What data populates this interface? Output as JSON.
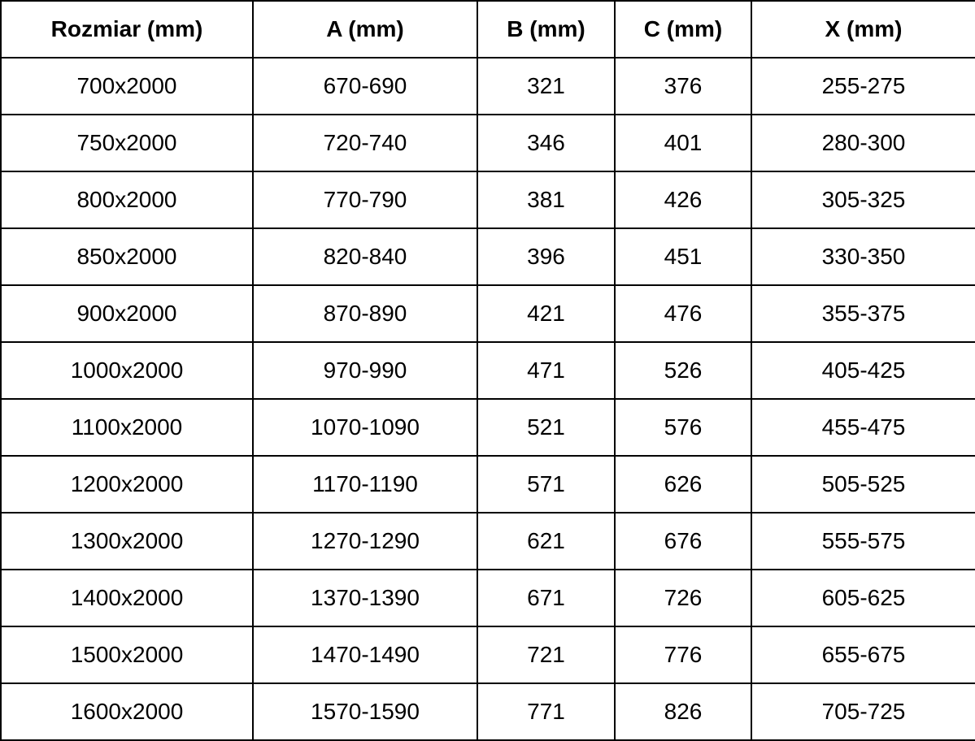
{
  "page": {
    "background_color": "#ffffff",
    "text_color": "#000000",
    "grid_color": "#000000"
  },
  "table": {
    "headers": [
      "Rozmiar (mm)",
      "A (mm)",
      "B (mm)",
      "C (mm)",
      "X (mm)"
    ],
    "rows": [
      [
        "700x2000",
        "670-690",
        "321",
        "376",
        "255-275"
      ],
      [
        "750x2000",
        "720-740",
        "346",
        "401",
        "280-300"
      ],
      [
        "800x2000",
        "770-790",
        "381",
        "426",
        "305-325"
      ],
      [
        "850x2000",
        "820-840",
        "396",
        "451",
        "330-350"
      ],
      [
        "900x2000",
        "870-890",
        "421",
        "476",
        "355-375"
      ],
      [
        "1000x2000",
        "970-990",
        "471",
        "526",
        "405-425"
      ],
      [
        "1100x2000",
        "1070-1090",
        "521",
        "576",
        "455-475"
      ],
      [
        "1200x2000",
        "1170-1190",
        "571",
        "626",
        "505-525"
      ],
      [
        "1300x2000",
        "1270-1290",
        "621",
        "676",
        "555-575"
      ],
      [
        "1400x2000",
        "1370-1390",
        "671",
        "726",
        "605-625"
      ],
      [
        "1500x2000",
        "1470-1490",
        "721",
        "776",
        "655-675"
      ],
      [
        "1600x2000",
        "1570-1590",
        "771",
        "826",
        "705-725"
      ]
    ]
  },
  "chart_data": {
    "type": "table",
    "title": "",
    "columns": [
      "Rozmiar (mm)",
      "A (mm)",
      "B (mm)",
      "C (mm)",
      "X (mm)"
    ],
    "rows": [
      [
        "700x2000",
        "670-690",
        "321",
        "376",
        "255-275"
      ],
      [
        "750x2000",
        "720-740",
        "346",
        "401",
        "280-300"
      ],
      [
        "800x2000",
        "770-790",
        "381",
        "426",
        "305-325"
      ],
      [
        "850x2000",
        "820-840",
        "396",
        "451",
        "330-350"
      ],
      [
        "900x2000",
        "870-890",
        "421",
        "476",
        "355-375"
      ],
      [
        "1000x2000",
        "970-990",
        "471",
        "526",
        "405-425"
      ],
      [
        "1100x2000",
        "1070-1090",
        "521",
        "576",
        "455-475"
      ],
      [
        "1200x2000",
        "1170-1190",
        "571",
        "626",
        "505-525"
      ],
      [
        "1300x2000",
        "1270-1290",
        "621",
        "676",
        "555-575"
      ],
      [
        "1400x2000",
        "1370-1390",
        "671",
        "726",
        "605-625"
      ],
      [
        "1500x2000",
        "1470-1490",
        "721",
        "776",
        "655-675"
      ],
      [
        "1600x2000",
        "1570-1590",
        "771",
        "826",
        "705-725"
      ]
    ]
  }
}
